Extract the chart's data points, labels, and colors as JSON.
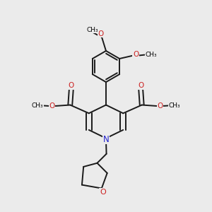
{
  "bg_color": "#ebebeb",
  "bond_color": "#1a1a1a",
  "N_color": "#2222cc",
  "O_color": "#cc2222",
  "lw": 1.4,
  "dbo": 0.013,
  "xlim": [
    0,
    1
  ],
  "ylim": [
    0,
    1
  ]
}
